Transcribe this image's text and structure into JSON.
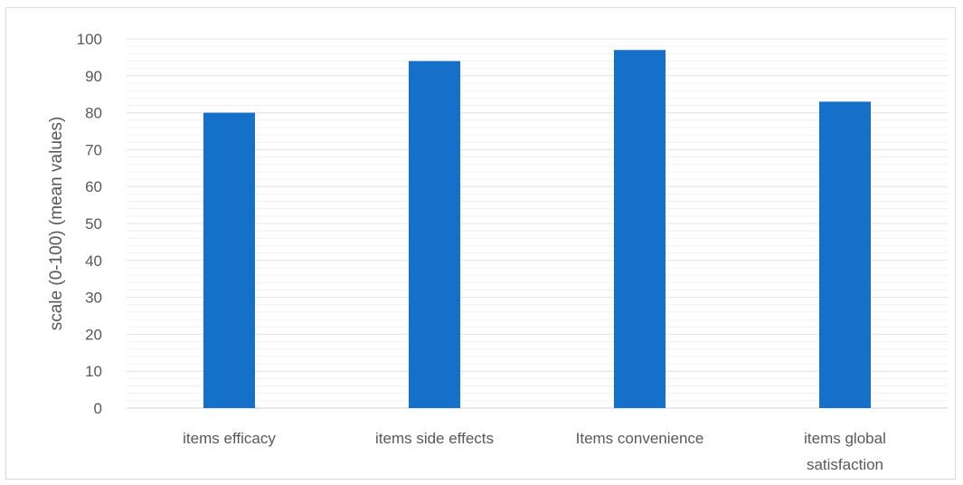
{
  "chart_data": {
    "type": "bar",
    "title": "",
    "xlabel": "",
    "ylabel": "scale (0-100) (mean values)",
    "categories": [
      [
        "items efficacy"
      ],
      [
        "items side effects"
      ],
      [
        "Items convenience"
      ],
      [
        "items global",
        "satisfaction"
      ]
    ],
    "values": [
      80,
      94,
      97,
      83
    ],
    "ylim": [
      0,
      100
    ],
    "yticks": [
      0,
      10,
      20,
      30,
      40,
      50,
      60,
      70,
      80,
      90,
      100
    ],
    "minor_grid_step": 2,
    "grid": true,
    "legend": "none",
    "bar_color": "#1570c9",
    "grid_color": "#e3e3e3",
    "text_color": "#595959"
  }
}
